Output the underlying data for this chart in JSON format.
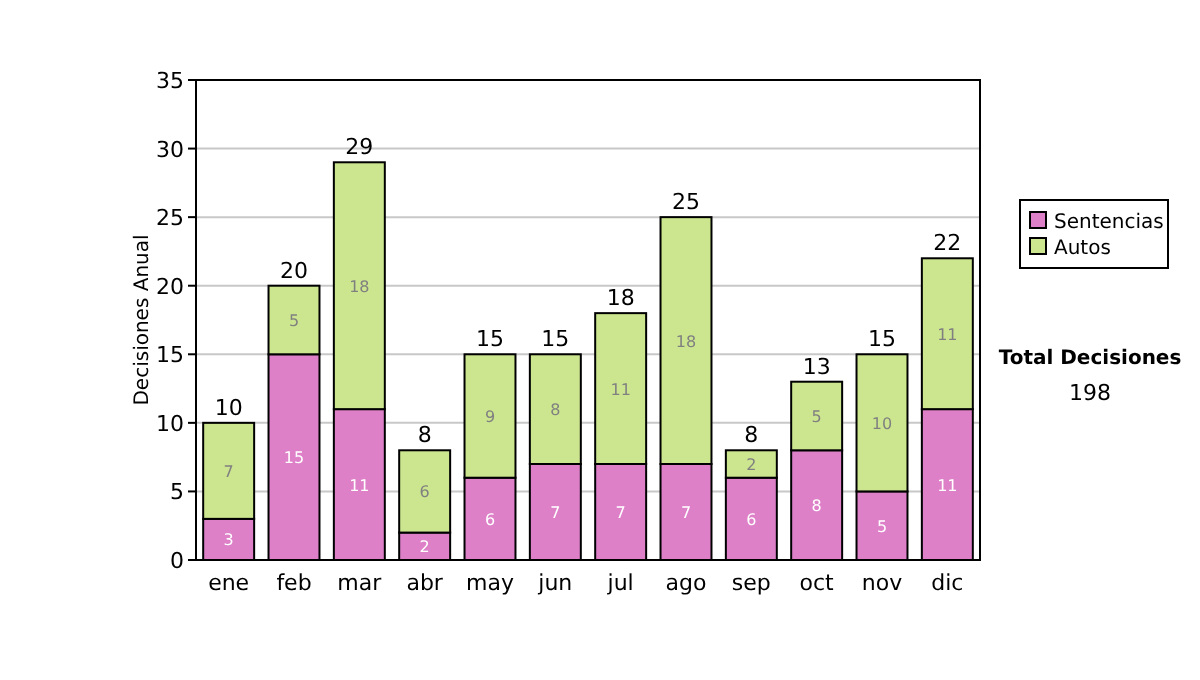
{
  "chart_data": {
    "type": "bar",
    "stacked": true,
    "ylabel": "Decisiones Anual",
    "categories": [
      "ene",
      "feb",
      "mar",
      "abr",
      "may",
      "jun",
      "jul",
      "ago",
      "sep",
      "oct",
      "nov",
      "dic"
    ],
    "series": [
      {
        "name": "Sentencias",
        "color": "#dd80c8",
        "values": [
          3,
          15,
          11,
          2,
          6,
          7,
          7,
          7,
          6,
          8,
          5,
          11
        ]
      },
      {
        "name": "Autos",
        "color": "#cce68f",
        "values": [
          7,
          5,
          18,
          6,
          9,
          8,
          11,
          18,
          2,
          5,
          10,
          11
        ]
      }
    ],
    "ylim": [
      0,
      35
    ],
    "yticks": [
      0,
      5,
      10,
      15,
      20,
      25,
      30,
      35
    ],
    "grid": "y",
    "legend": "right",
    "data_labels": true,
    "totals": [
      "10",
      "20",
      "29",
      "8",
      "15",
      "15",
      "18",
      "25",
      "8",
      "13",
      "15",
      "22"
    ],
    "annotations": [
      "Total Decisiones",
      "198"
    ]
  }
}
